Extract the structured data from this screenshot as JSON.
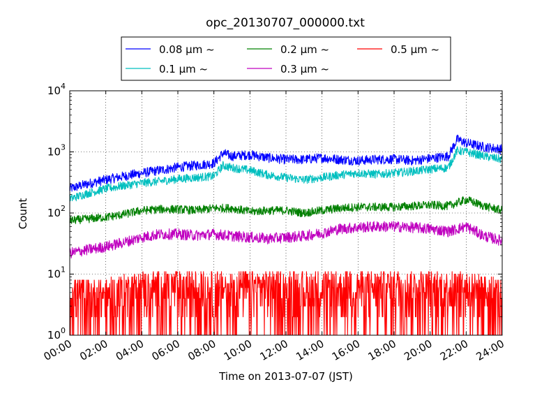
{
  "chart_data": {
    "type": "line",
    "title": "opc_20130707_000000.txt",
    "xlabel": "Time on 2013-07-07 (JST)",
    "ylabel": "Count",
    "y_scale": "log",
    "xlim_hours": [
      0,
      24
    ],
    "ylim": [
      1,
      10000
    ],
    "grid": true,
    "grid_style": "dotted",
    "legend_position": "top-center, above plot",
    "x_tick_labels": [
      "00:00",
      "02:00",
      "04:00",
      "06:00",
      "08:00",
      "10:00",
      "12:00",
      "14:00",
      "16:00",
      "18:00",
      "20:00",
      "22:00",
      "24:00"
    ],
    "y_tick_labels": [
      {
        "base": "10",
        "exp": "0",
        "value": 1
      },
      {
        "base": "10",
        "exp": "1",
        "value": 10
      },
      {
        "base": "10",
        "exp": "2",
        "value": 100
      },
      {
        "base": "10",
        "exp": "3",
        "value": 1000
      },
      {
        "base": "10",
        "exp": "4",
        "value": 10000
      }
    ],
    "series": [
      {
        "name": "0.08 μm ~",
        "color": "#0000ff",
        "x_hours": [
          0,
          1,
          2,
          3,
          4,
          5,
          6,
          7,
          8,
          8.5,
          9,
          10,
          11,
          12,
          13,
          14,
          15,
          16,
          17,
          18,
          19,
          20,
          21,
          21.5,
          22,
          23,
          24
        ],
        "values": [
          250,
          300,
          350,
          400,
          450,
          500,
          560,
          600,
          650,
          950,
          850,
          900,
          800,
          750,
          750,
          800,
          750,
          720,
          750,
          760,
          720,
          780,
          850,
          1600,
          1400,
          1200,
          1100
        ]
      },
      {
        "name": "0.1 μm ~",
        "color": "#00bfbf",
        "x_hours": [
          0,
          1,
          2,
          3,
          4,
          5,
          6,
          7,
          8,
          8.5,
          9,
          10,
          11,
          12,
          13,
          14,
          15,
          16,
          17,
          18,
          19,
          20,
          21,
          21.5,
          22,
          23,
          24
        ],
        "values": [
          170,
          210,
          250,
          280,
          310,
          330,
          360,
          380,
          400,
          600,
          550,
          500,
          420,
          380,
          350,
          380,
          420,
          450,
          430,
          450,
          480,
          520,
          550,
          1050,
          1000,
          850,
          750
        ]
      },
      {
        "name": "0.2 μm ~",
        "color": "#008000",
        "x_hours": [
          0,
          1,
          2,
          3,
          4,
          5,
          6,
          7,
          8,
          9,
          10,
          11,
          12,
          13,
          14,
          15,
          16,
          17,
          18,
          19,
          20,
          21,
          22,
          23,
          24
        ],
        "values": [
          75,
          80,
          85,
          95,
          110,
          115,
          115,
          110,
          120,
          120,
          105,
          110,
          110,
          100,
          110,
          120,
          125,
          125,
          125,
          130,
          135,
          130,
          165,
          130,
          110
        ]
      },
      {
        "name": "0.3 μm ~",
        "color": "#bf00bf",
        "x_hours": [
          0,
          1,
          2,
          3,
          4,
          5,
          6,
          7,
          8,
          9,
          10,
          11,
          12,
          13,
          14,
          15,
          16,
          17,
          18,
          19,
          20,
          21,
          22,
          23,
          24
        ],
        "values": [
          22,
          25,
          28,
          33,
          40,
          45,
          45,
          43,
          45,
          42,
          40,
          38,
          40,
          42,
          47,
          55,
          58,
          60,
          60,
          58,
          55,
          50,
          60,
          42,
          35
        ]
      },
      {
        "name": "0.5 μm ~",
        "color": "#ff0000",
        "x_hours": [
          0,
          2,
          4,
          6,
          8,
          10,
          12,
          14,
          16,
          18,
          20,
          22,
          24
        ],
        "values": [
          3,
          3,
          4,
          4,
          4,
          4,
          4,
          4,
          4,
          4,
          4,
          4,
          3
        ]
      }
    ]
  }
}
